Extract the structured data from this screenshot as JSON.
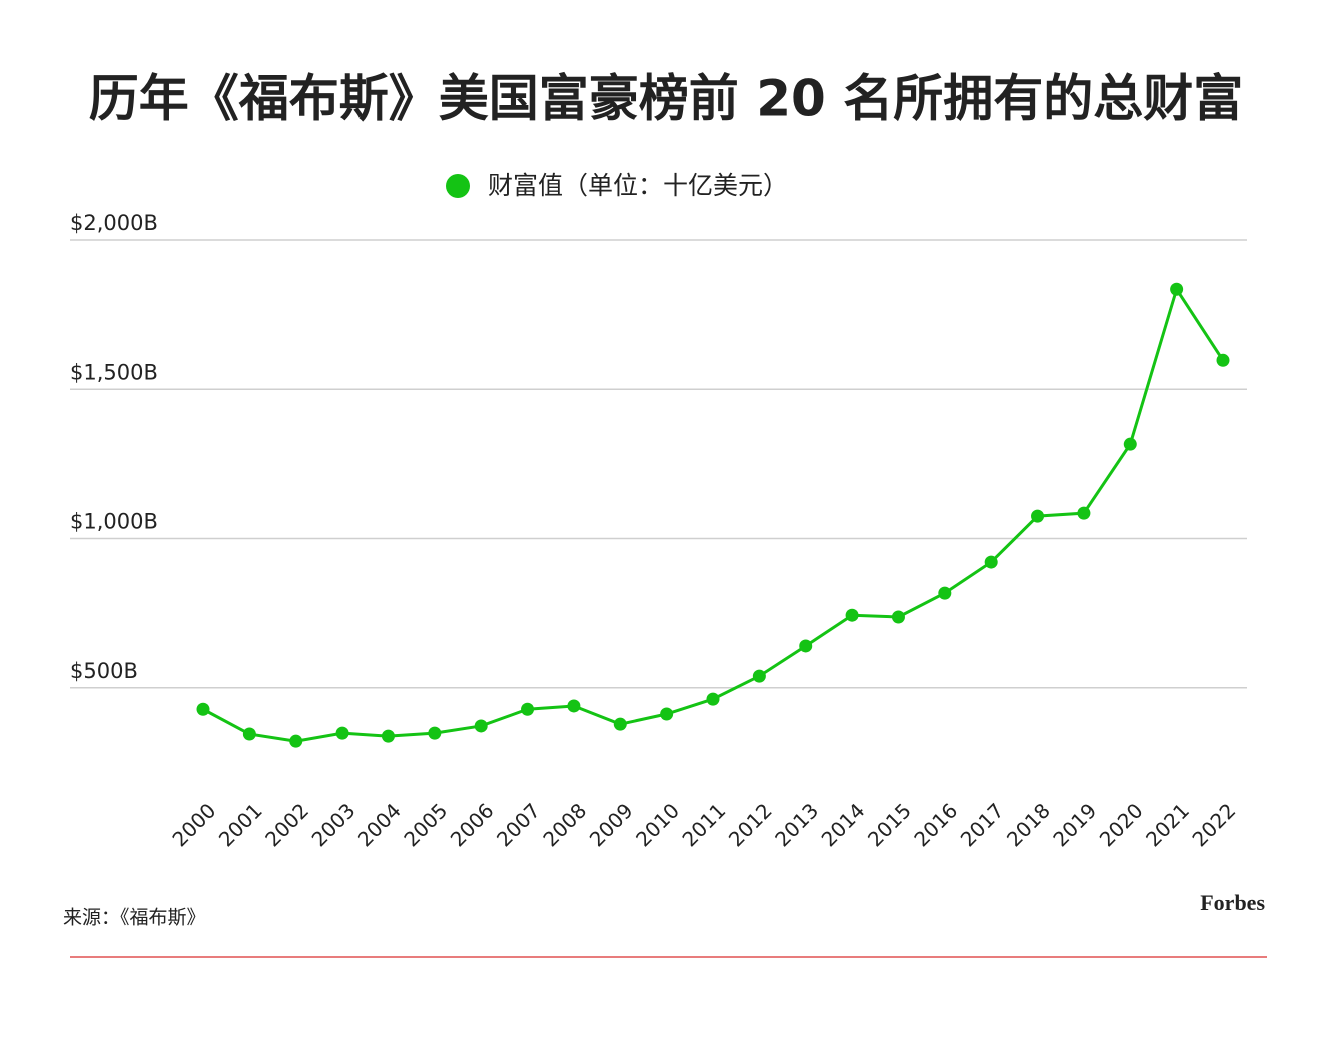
{
  "chart_data": {
    "type": "line",
    "title": "历年《福布斯》美国富豪榜前 20 名所拥有的总财富",
    "categories": [
      "2000",
      "2001",
      "2002",
      "2003",
      "2004",
      "2005",
      "2006",
      "2007",
      "2008",
      "2009",
      "2010",
      "2011",
      "2012",
      "2013",
      "2014",
      "2015",
      "2016",
      "2017",
      "2018",
      "2019",
      "2020",
      "2021",
      "2022"
    ],
    "series": [
      {
        "name": "财富值（单位：十亿美元）",
        "color": "#14c314",
        "values": [
          428,
          345,
          321,
          348,
          338,
          348,
          372,
          428,
          439,
          378,
          412,
          462,
          539,
          640,
          743,
          737,
          817,
          921,
          1075,
          1085,
          1316,
          1835,
          1597
        ]
      }
    ],
    "ylim": [
      0,
      2000
    ],
    "yticks": [
      {
        "value": 500,
        "label": "$500B"
      },
      {
        "value": 1000,
        "label": "$1,000B"
      },
      {
        "value": 1500,
        "label": "$1,500B"
      },
      {
        "value": 2000,
        "label": "$2,000B"
      }
    ],
    "grid": true,
    "legend": "top",
    "source": "来源：《福布斯》",
    "brand": "Forbes"
  }
}
